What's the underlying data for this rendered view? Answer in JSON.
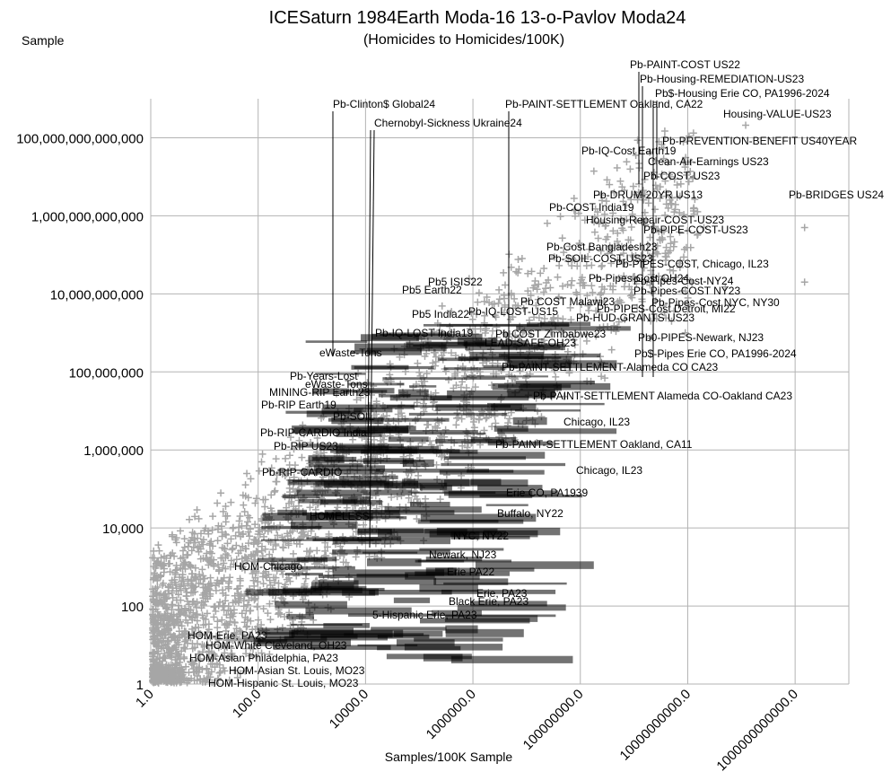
{
  "chart_data": {
    "type": "scatter",
    "title": "ICESaturn 1984Earth Moda-16 13-o-Pavlov Moda24",
    "subtitle": "(Homicides to Homicides/100K)",
    "xlabel": "Samples/100K Sample",
    "ylabel": "Sample",
    "x_scale": "log",
    "y_scale": "log",
    "xlim": [
      1,
      10000000000000.0
    ],
    "ylim": [
      1,
      1000000000000000.0
    ],
    "grid": true,
    "x_ticks": [
      {
        "value": 1,
        "label": "1.0"
      },
      {
        "value": 100,
        "label": "100.0"
      },
      {
        "value": 10000,
        "label": "10000.0"
      },
      {
        "value": 1000000,
        "label": "1000000.0"
      },
      {
        "value": 100000000,
        "label": "100000000.0"
      },
      {
        "value": 10000000000,
        "label": "10000000000.0"
      },
      {
        "value": 1000000000000,
        "label": "1000000000000.0"
      }
    ],
    "y_ticks": [
      {
        "value": 1,
        "label": "1"
      },
      {
        "value": 100,
        "label": "100"
      },
      {
        "value": 10000,
        "label": "10,000"
      },
      {
        "value": 1000000,
        "label": "1,000,000"
      },
      {
        "value": 100000000,
        "label": "100,000,000"
      },
      {
        "value": 10000000000,
        "label": "10,000,000,000"
      },
      {
        "value": 1000000000000,
        "label": "1,000,000,000,000"
      },
      {
        "value": 100000000000000,
        "label": "100,000,000,000,000"
      }
    ],
    "series": [
      {
        "color": "#a6a6a6",
        "marker": "plus",
        "points": [
          {
            "x": 120000000000.0,
            "y": 210000000000000.0
          },
          {
            "x": 600000000.0,
            "y": 5500000000000.0
          },
          {
            "x": 4000000000.0,
            "y": 2000000000000.0
          },
          {
            "x": 13000000000.0,
            "y": 1600000000000.0
          },
          {
            "x": 7000000000.0,
            "y": 1200000000000.0
          },
          {
            "x": 1500000000000.0,
            "y": 500000000000.0
          },
          {
            "x": 20000000000.0,
            "y": 500000000000.0
          },
          {
            "x": 300000000.0,
            "y": 250000000000.0
          },
          {
            "x": 1500000000000.0,
            "y": 20000000000.0
          },
          {
            "x": 8000000000.0,
            "y": 12000000000.0
          },
          {
            "x": 50000000000.0,
            "y": 15000000000.0
          },
          {
            "x": 2000000.0,
            "y": 6000000000.0
          },
          {
            "x": 5000000000.0,
            "y": 2000000000.0
          },
          {
            "x": 9000000000.0,
            "y": 1000000000.0
          }
        ]
      }
    ],
    "annotations": [
      {
        "text": "Pb-PAINT-COST US22"
      },
      {
        "text": "Pb-Housing-REMEDIATION-US23"
      },
      {
        "text": "Pb$-Housing Erie CO, PA1996-2024"
      },
      {
        "text": "Pb-Clinton$ Global24"
      },
      {
        "text": "Pb-PAINT-SETTLEMENT Oakland, CA22"
      },
      {
        "text": "Housing-VALUE-US23"
      },
      {
        "text": "Chernobyl-Sickness Ukraine24"
      },
      {
        "text": "Pb-PREVENTION-BENEFIT US40YEAR"
      },
      {
        "text": "Pb-IQ-Cost Earth19"
      },
      {
        "text": "Clean-Air-Earnings US23"
      },
      {
        "text": "Pb-COST-US23"
      },
      {
        "text": "Pb-DRUM-20YR US13"
      },
      {
        "text": "Pb-BRIDGES US24"
      },
      {
        "text": "Pb-COST India19"
      },
      {
        "text": "Housing-Repair-COST-US23"
      },
      {
        "text": "Pb-PIPE-COST-US23"
      },
      {
        "text": "Pb-Cost Bangladesh23"
      },
      {
        "text": "Pb-SOIL-COST-US23"
      },
      {
        "text": "Pb-PIPES-COST, Chicago, IL23"
      },
      {
        "text": "Pb5 ISIS22"
      },
      {
        "text": "Pb-Pipes-Cost OH24"
      },
      {
        "text": "Pb5 Earth22"
      },
      {
        "text": "Pb-Pipes-Cost-NY24"
      },
      {
        "text": "Pb-Pipes-COST NY23"
      },
      {
        "text": "Pb COST Malawi23"
      },
      {
        "text": "Pb-Pipes-Cost NYC, NY30"
      },
      {
        "text": "Pb-IQ-LOST-US15"
      },
      {
        "text": "Pb-PIPES-Cost Detroit, MI22"
      },
      {
        "text": "Pb5 India22"
      },
      {
        "text": "Pb-HUD-GRANTS US23"
      },
      {
        "text": "Pb-IQ-LOST India19"
      },
      {
        "text": "Pb COST Zimbabwe23"
      },
      {
        "text": "Pb0-PIPES-Newark, NJ23"
      },
      {
        "text": "LEAD-SAFE-OH23"
      },
      {
        "text": "Pb$-Pipes Erie CO, PA1996-2024"
      },
      {
        "text": "eWaste-Tons"
      },
      {
        "text": "Pb-PAINT-SETTLEMENT-Alameda CO CA23"
      },
      {
        "text": "Pb-Years-Lost"
      },
      {
        "text": "eWaste-Tons"
      },
      {
        "text": "MINING-RIP Earth23"
      },
      {
        "text": "Pb-PAINT-SETTLEMENT Alameda CO-Oakland CA23"
      },
      {
        "text": "Pb-RIP Earth19"
      },
      {
        "text": "Pb-SOIL"
      },
      {
        "text": "Chicago, IL23"
      },
      {
        "text": "Pb-RIP-CARDIO India"
      },
      {
        "text": "Pb-RIP US23"
      },
      {
        "text": "Pb-PAINT-SETTLEMENT Oakland, CA11"
      },
      {
        "text": "Pb-RIP-CARDIO"
      },
      {
        "text": "Chicago, IL23"
      },
      {
        "text": "Erie CO, PA1939"
      },
      {
        "text": "Buffalo, NY22"
      },
      {
        "text": "HOMELESS"
      },
      {
        "text": "NYC, NY22"
      },
      {
        "text": "Newark, NJ23"
      },
      {
        "text": "HOM-Chicago"
      },
      {
        "text": "Erie PA22"
      },
      {
        "text": "Erie, PA23"
      },
      {
        "text": "Black Erie, PA23"
      },
      {
        "text": "5-Hispanic Erie, PA23"
      },
      {
        "text": "HOM-Erie, PA23"
      },
      {
        "text": "HOM-White Cleveland, OH23"
      },
      {
        "text": "HOM-Asian Philadelphia, PA23"
      },
      {
        "text": "HOM-Asian St. Louis, MO23"
      },
      {
        "text": "HOM-Hispanic St. Louis, MO23"
      }
    ]
  }
}
